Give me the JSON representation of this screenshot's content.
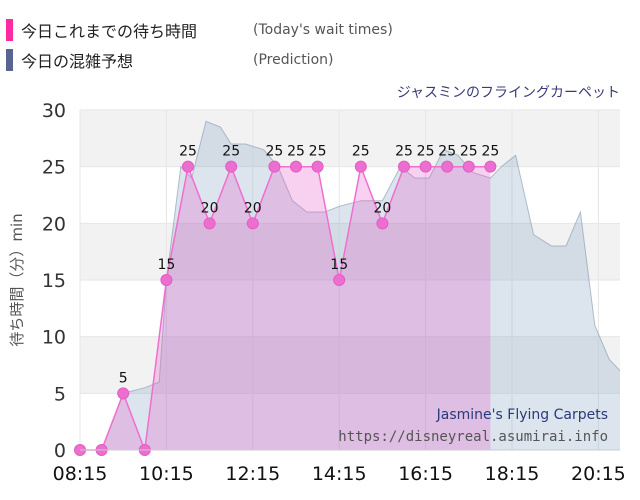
{
  "legend": {
    "today": {
      "label": "今日これまでの待ち時間",
      "desc": "(Today's wait times)",
      "color": "#ff2aa0"
    },
    "prediction": {
      "label": "今日の混雑予想",
      "desc": "(Prediction)",
      "color": "#5a6490"
    }
  },
  "attraction_name": "ジャスミンのフライングカーペット",
  "chart_data": {
    "type": "area",
    "ylabel": "待ち時間（分）min",
    "ylim": [
      0,
      30
    ],
    "yticks": [
      0,
      5,
      10,
      15,
      20,
      25,
      30
    ],
    "xlim": [
      "08:15",
      "20:45"
    ],
    "xticks": [
      "08:15",
      "10:15",
      "12:15",
      "14:15",
      "16:15",
      "18:15",
      "20:15"
    ],
    "grid": true,
    "watermark": {
      "title": "Jasmine's Flying Carpets",
      "url": "https://disneyreal.asumirai.info"
    },
    "series": [
      {
        "role": "prediction",
        "x": [
          "08:15",
          "08:45",
          "09:15",
          "09:45",
          "10:05",
          "10:15",
          "10:35",
          "10:50",
          "11:10",
          "11:30",
          "11:45",
          "12:05",
          "12:30",
          "12:50",
          "13:10",
          "13:30",
          "13:55",
          "14:15",
          "14:45",
          "15:15",
          "15:40",
          "16:00",
          "16:20",
          "16:40",
          "17:00",
          "17:20",
          "17:45",
          "18:00",
          "18:20",
          "18:45",
          "19:10",
          "19:30",
          "19:50",
          "20:10",
          "20:30",
          "20:45"
        ],
        "values": [
          0,
          0,
          5,
          5.5,
          6,
          15,
          25,
          24,
          29,
          28.5,
          27,
          27,
          26.5,
          25,
          22,
          21,
          21,
          21.5,
          22,
          22,
          25,
          24,
          24,
          26.5,
          26,
          24.5,
          24,
          25,
          26,
          19,
          18,
          18,
          21,
          11,
          8,
          7
        ]
      },
      {
        "role": "today",
        "x": [
          "08:15",
          "08:45",
          "09:15",
          "09:45",
          "10:15",
          "10:45",
          "11:15",
          "11:45",
          "12:15",
          "12:45",
          "13:15",
          "13:45",
          "14:15",
          "14:45",
          "15:15",
          "15:45",
          "16:15",
          "16:45",
          "17:15",
          "17:45"
        ],
        "values": [
          0,
          0,
          5,
          0,
          15,
          25,
          20,
          25,
          20,
          25,
          25,
          25,
          15,
          25,
          20,
          25,
          25,
          25,
          25,
          25
        ],
        "labels": [
          "",
          "",
          "5",
          "",
          "15",
          "25",
          "20",
          "25",
          "20",
          "25",
          "25",
          "25",
          "15",
          "25",
          "20",
          "25",
          "25",
          "25",
          "25",
          "25"
        ]
      }
    ]
  }
}
